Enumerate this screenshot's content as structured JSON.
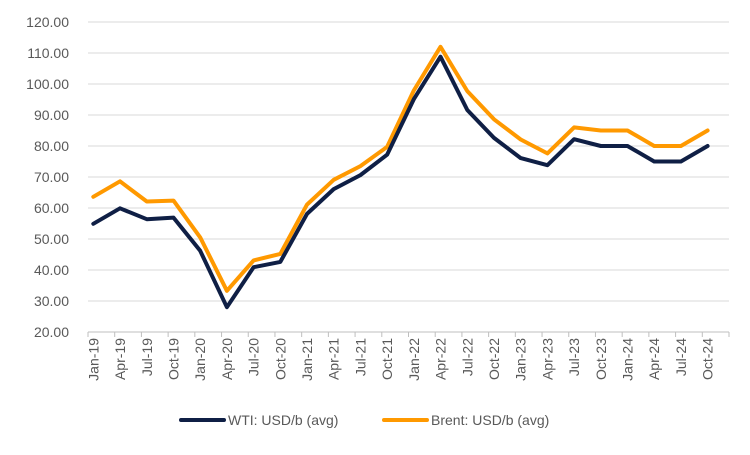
{
  "chart_data": {
    "type": "line",
    "title": "",
    "xlabel": "",
    "ylabel": "",
    "ylim": [
      20,
      120
    ],
    "yticks": [
      "20.00",
      "30.00",
      "40.00",
      "50.00",
      "60.00",
      "70.00",
      "80.00",
      "90.00",
      "100.00",
      "110.00",
      "120.00"
    ],
    "grid": true,
    "legend_placement": "bottom",
    "categories": [
      "Jan-19",
      "Apr-19",
      "Jul-19",
      "Oct-19",
      "Jan-20",
      "Apr-20",
      "Jul-20",
      "Oct-20",
      "Jan-21",
      "Apr-21",
      "Jul-21",
      "Oct-21",
      "Jan-22",
      "Apr-22",
      "Jul-22",
      "Oct-22",
      "Jan-23",
      "Apr-23",
      "Jul-23",
      "Oct-23",
      "Jan-24",
      "Apr-24",
      "Jul-24",
      "Oct-24"
    ],
    "series": [
      {
        "name": "WTI: USD/b (avg)",
        "color": "#0f1f45",
        "values": [
          54.9,
          59.9,
          56.4,
          56.9,
          46.2,
          28.0,
          40.9,
          42.6,
          58.1,
          66.1,
          70.6,
          77.2,
          95.1,
          108.8,
          91.6,
          82.6,
          76.1,
          73.8,
          82.2,
          80.0,
          80.0,
          75.0,
          75.0,
          80.0
        ]
      },
      {
        "name": "Brent: USD/b (avg)",
        "color": "#ff9900",
        "values": [
          63.6,
          68.6,
          62.1,
          62.4,
          50.5,
          33.3,
          43.1,
          45.2,
          61.1,
          69.1,
          73.5,
          79.7,
          97.9,
          112.0,
          97.7,
          88.6,
          82.1,
          77.6,
          86.0,
          85.0,
          85.0,
          80.0,
          80.0,
          85.0
        ]
      }
    ]
  }
}
